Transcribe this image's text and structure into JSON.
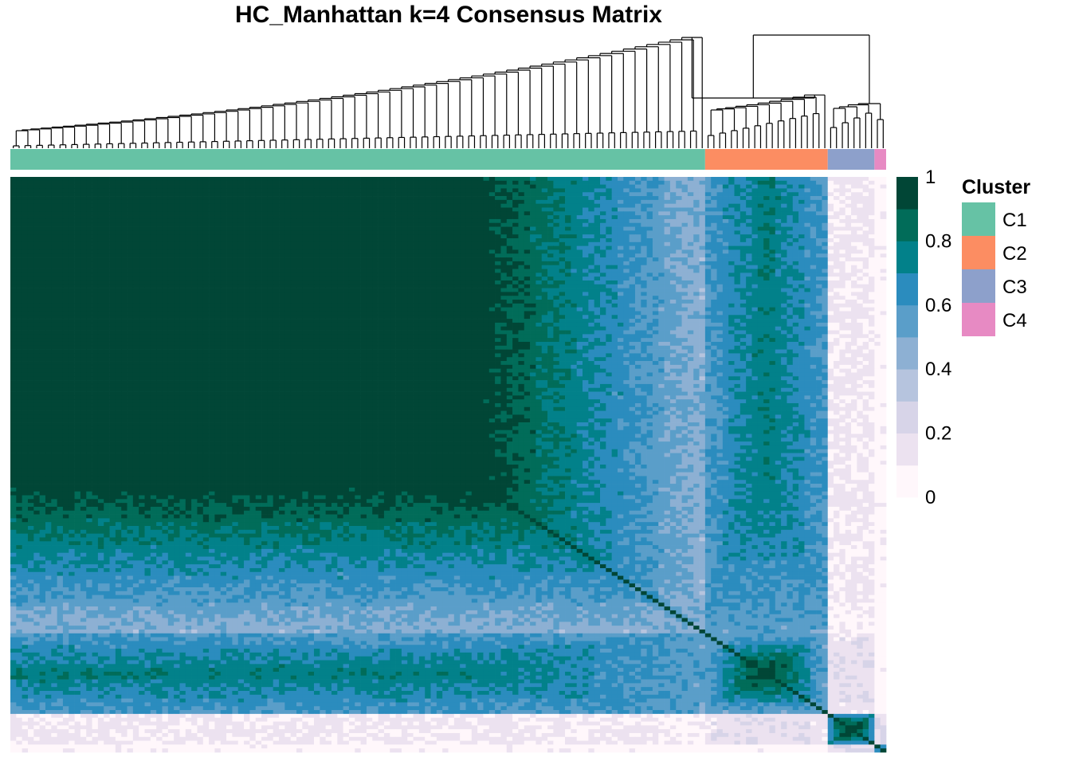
{
  "title": "HC_Manhattan k=4 Consensus Matrix",
  "chart_data": {
    "type": "heatmap",
    "title": "HC_Manhattan k=4 Consensus Matrix",
    "n_samples": 150,
    "value_range": [
      0,
      1
    ],
    "colorbar": {
      "ticks": [
        "1",
        "0.8",
        "0.6",
        "0.4",
        "0.2",
        "0"
      ],
      "tick_values": [
        1,
        0.8,
        0.6,
        0.4,
        0.2,
        0
      ],
      "bins": [
        {
          "lo": 0.0,
          "hi": 0.1,
          "color": "#fff7fb"
        },
        {
          "lo": 0.1,
          "hi": 0.2,
          "color": "#ece2f0"
        },
        {
          "lo": 0.2,
          "hi": 0.3,
          "color": "#d7d4e8"
        },
        {
          "lo": 0.3,
          "hi": 0.4,
          "color": "#b6c4de"
        },
        {
          "lo": 0.4,
          "hi": 0.5,
          "color": "#8db0d3"
        },
        {
          "lo": 0.5,
          "hi": 0.6,
          "color": "#5a9ec9"
        },
        {
          "lo": 0.6,
          "hi": 0.7,
          "color": "#2b8cbe"
        },
        {
          "lo": 0.7,
          "hi": 0.8,
          "color": "#02818a"
        },
        {
          "lo": 0.8,
          "hi": 0.9,
          "color": "#016c59"
        },
        {
          "lo": 0.9,
          "hi": 1.0,
          "color": "#014636"
        }
      ]
    },
    "legend": {
      "title": "Cluster",
      "placement": "right",
      "entries": [
        {
          "label": "C1",
          "color": "#66c2a5"
        },
        {
          "label": "C2",
          "color": "#fc8d62"
        },
        {
          "label": "C3",
          "color": "#8da0cb"
        },
        {
          "label": "C4",
          "color": "#e78ac3"
        }
      ]
    },
    "clusters": [
      {
        "label": "C1",
        "n": 119,
        "within_consensus": "0.8-1.0 (core ~1.0)"
      },
      {
        "label": "C2",
        "n": 21,
        "within_consensus": "0.5-1.0"
      },
      {
        "label": "C3",
        "n": 8,
        "within_consensus": "0.6-1.0"
      },
      {
        "label": "C4",
        "n": 2,
        "within_consensus": "0.9-1.0"
      }
    ],
    "between_cluster_consensus": {
      "C1-C2": 0.6,
      "C1-C3": 0.1,
      "C1-C4": 0.05,
      "C2-C3": 0.15,
      "C2-C4": 0.05,
      "C3-C4": 0.2
    },
    "dendrogram": true
  }
}
